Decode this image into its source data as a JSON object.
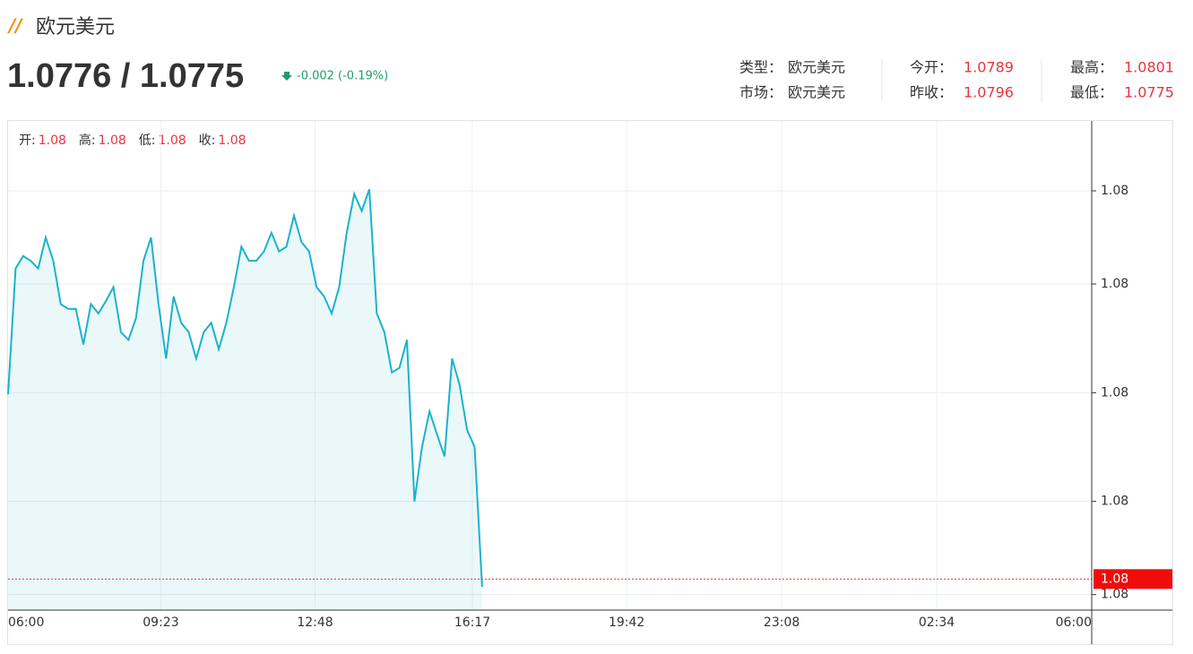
{
  "header": {
    "title": "欧元美元",
    "price": "1.0776 / 1.0775",
    "change": "-0.002 (-0.19%)"
  },
  "info": [
    {
      "label": "类型：",
      "value": "欧元美元"
    },
    {
      "label": "今开：",
      "value": "1.0789"
    },
    {
      "label": "最高：",
      "value": "1.0801"
    },
    {
      "label": "市场：",
      "value": "欧元美元"
    },
    {
      "label": "昨收：",
      "value": "1.0796"
    },
    {
      "label": "最低：",
      "value": "1.0775"
    }
  ],
  "ohlc": [
    {
      "label": "开:",
      "value": "1.08"
    },
    {
      "label": "高:",
      "value": "1.08"
    },
    {
      "label": "低:",
      "value": "1.08"
    },
    {
      "label": "收:",
      "value": "1.08"
    }
  ],
  "chart_data": {
    "type": "area",
    "x": [
      "06:00",
      "06:10",
      "06:20",
      "06:30",
      "06:40",
      "06:50",
      "07:00",
      "07:10",
      "07:20",
      "07:30",
      "07:40",
      "07:50",
      "08:00",
      "08:10",
      "08:20",
      "08:30",
      "08:40",
      "08:50",
      "09:00",
      "09:10",
      "09:20",
      "09:30",
      "09:40",
      "09:50",
      "10:00",
      "10:10",
      "10:20",
      "10:30",
      "10:40",
      "10:50",
      "11:00",
      "11:10",
      "11:20",
      "11:30",
      "11:40",
      "11:50",
      "12:00",
      "12:10",
      "12:20",
      "12:30",
      "12:40",
      "12:50",
      "13:00",
      "13:10",
      "13:20",
      "13:30",
      "13:40",
      "13:50",
      "14:00",
      "14:10",
      "14:20",
      "14:30",
      "14:40",
      "14:50",
      "15:00",
      "15:10",
      "15:20",
      "15:30",
      "15:40",
      "15:50",
      "16:00",
      "16:10",
      "16:20",
      "16:30"
    ],
    "series": [
      {
        "name": "欧元美元",
        "color": "#1ab3cc",
        "values": [
          1.07869,
          1.0795,
          1.07958,
          1.07955,
          1.0795,
          1.0797,
          1.07955,
          1.07927,
          1.07924,
          1.07924,
          1.07901,
          1.07927,
          1.07921,
          1.07929,
          1.07938,
          1.07909,
          1.07904,
          1.07918,
          1.07955,
          1.0797,
          1.07927,
          1.07892,
          1.07932,
          1.07915,
          1.07909,
          1.07892,
          1.07909,
          1.07915,
          1.07898,
          1.07915,
          1.07938,
          1.07964,
          1.07955,
          1.07955,
          1.07961,
          1.07973,
          1.07961,
          1.07964,
          1.07984,
          1.07967,
          1.07961,
          1.07938,
          1.07932,
          1.07921,
          1.07938,
          1.07973,
          1.07998,
          1.07987,
          1.08001,
          1.07921,
          1.07909,
          1.07883,
          1.07886,
          1.07904,
          1.078,
          1.07835,
          1.07858,
          1.07843,
          1.07829,
          1.07892,
          1.07875,
          1.07846,
          1.07835,
          1.07745
        ]
      }
    ],
    "xlim": [
      "06:00",
      "06:00"
    ],
    "xticks": [
      "06:00",
      "09:23",
      "12:48",
      "16:17",
      "19:42",
      "23:08",
      "02:34",
      "06:00"
    ],
    "ylim": [
      1.0773,
      1.08045
    ],
    "yticks": [
      {
        "value": 1.0774,
        "label": "1.08"
      },
      {
        "value": 1.078,
        "label": "1.08"
      },
      {
        "value": 1.0787,
        "label": "1.08"
      },
      {
        "value": 1.0794,
        "label": "1.08"
      },
      {
        "value": 1.08,
        "label": "1.08"
      }
    ],
    "last_price": {
      "value": 1.0775,
      "label": "1.08"
    },
    "grid": true
  }
}
